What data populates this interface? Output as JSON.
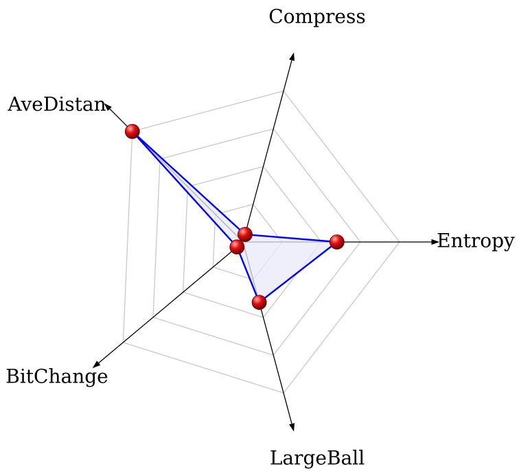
{
  "chart_data": {
    "type": "radar",
    "axes": [
      "Entropy",
      "Compress",
      "AveDistan",
      "BitChange",
      "LargeBall"
    ],
    "levels": 4,
    "max": 1,
    "grid": true,
    "colors": {
      "grid": "#c8c8c8",
      "axis": "#000000",
      "series_line": "#0000ff",
      "series_fill": "#e9e9f9",
      "marker": "#dd0000"
    },
    "series": [
      {
        "values": [
          0.6,
          0.05,
          1.0,
          0.05,
          0.4
        ]
      }
    ]
  }
}
